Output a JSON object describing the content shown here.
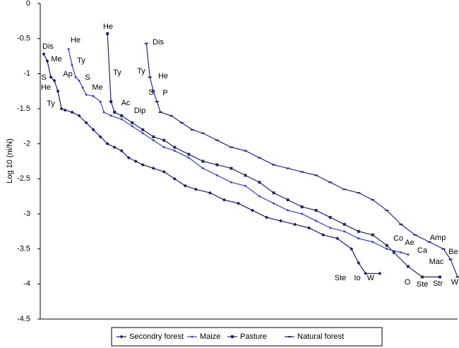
{
  "chart_data": {
    "type": "line",
    "y_label": "Log 10 (ni/N)",
    "ylim": [
      -4.5,
      0
    ],
    "yticks": [
      0,
      -0.5,
      -1,
      -1.5,
      -2,
      -2.5,
      -3,
      -3.5,
      -4,
      -4.5
    ],
    "xlim": [
      0,
      118
    ],
    "series": [
      {
        "name": "Secondry forest",
        "color": "#1c1c5c",
        "marker": "diamond",
        "x": [
          1,
          2,
          3,
          4,
          5,
          6,
          7,
          9,
          11,
          13,
          15,
          17,
          19,
          21,
          23,
          25,
          27,
          29,
          32,
          35,
          38,
          41,
          44,
          48,
          52,
          56,
          60,
          64,
          68,
          72,
          76,
          80,
          84,
          88,
          90,
          92,
          96
        ],
        "values": [
          -0.72,
          -0.82,
          -1.05,
          -1.1,
          -1.25,
          -1.5,
          -1.52,
          -1.55,
          -1.6,
          -1.7,
          -1.8,
          -1.9,
          -2.0,
          -2.05,
          -2.1,
          -2.2,
          -2.25,
          -2.3,
          -2.35,
          -2.4,
          -2.5,
          -2.6,
          -2.65,
          -2.7,
          -2.8,
          -2.85,
          -2.95,
          -3.05,
          -3.1,
          -3.15,
          -3.2,
          -3.3,
          -3.35,
          -3.5,
          -3.7,
          -3.85,
          -3.85
        ]
      },
      {
        "name": "Maize",
        "color": "#4040b8",
        "marker": "dot",
        "x": [
          8,
          9,
          10,
          11,
          12,
          13,
          15,
          17,
          18,
          20,
          23,
          26,
          29,
          32,
          35,
          38,
          42,
          46,
          50,
          54,
          58,
          62,
          66,
          70,
          74,
          78,
          82,
          86,
          90,
          94,
          98,
          102,
          104
        ],
        "values": [
          -0.65,
          -0.88,
          -1.05,
          -1.1,
          -1.2,
          -1.3,
          -1.32,
          -1.4,
          -1.55,
          -1.6,
          -1.65,
          -1.75,
          -1.85,
          -1.95,
          -2.05,
          -2.1,
          -2.2,
          -2.35,
          -2.45,
          -2.55,
          -2.6,
          -2.75,
          -2.85,
          -2.95,
          -3.0,
          -3.1,
          -3.2,
          -3.25,
          -3.35,
          -3.4,
          -3.5,
          -3.55,
          -3.58
        ]
      },
      {
        "name": "Pasture",
        "color": "#26265e",
        "marker": "square",
        "x": [
          19,
          20,
          21,
          23,
          26,
          29,
          32,
          35,
          38,
          42,
          46,
          50,
          54,
          58,
          62,
          66,
          70,
          74,
          78,
          82,
          86,
          90,
          94,
          98,
          100,
          104,
          108,
          113
        ],
        "values": [
          -0.43,
          -1.4,
          -1.55,
          -1.6,
          -1.7,
          -1.8,
          -1.9,
          -1.95,
          -2.05,
          -2.15,
          -2.25,
          -2.3,
          -2.35,
          -2.45,
          -2.55,
          -2.7,
          -2.8,
          -2.9,
          -2.95,
          -3.05,
          -3.15,
          -3.25,
          -3.3,
          -3.45,
          -3.55,
          -3.75,
          -3.9,
          -3.9
        ]
      },
      {
        "name": "Natural forest",
        "color": "#2a2a7a",
        "marker": "dash",
        "x": [
          30,
          31,
          32,
          33,
          34,
          37,
          40,
          43,
          46,
          50,
          54,
          58,
          62,
          66,
          70,
          74,
          78,
          82,
          86,
          90,
          94,
          98,
          102,
          106,
          110,
          114,
          116,
          118
        ],
        "values": [
          -0.57,
          -1.05,
          -1.25,
          -1.4,
          -1.55,
          -1.6,
          -1.7,
          -1.8,
          -1.85,
          -1.95,
          -2.05,
          -2.1,
          -2.2,
          -2.3,
          -2.35,
          -2.4,
          -2.45,
          -2.55,
          -2.65,
          -2.7,
          -2.8,
          -2.95,
          -3.15,
          -3.3,
          -3.4,
          -3.5,
          -3.65,
          -3.9
        ]
      }
    ],
    "annotations": [
      "Dis",
      "Me",
      "S",
      "He",
      "Ty",
      "He",
      "Ty",
      "Ap",
      "S",
      "Me",
      "He",
      "Ty",
      "Ac",
      "Dip",
      "Dis",
      "Ty",
      "He",
      "S",
      "P",
      "Co",
      "Ae",
      "Ca",
      "Amp",
      "Be",
      "Mac",
      "Ste",
      "Io",
      "W",
      "O",
      "Ste",
      "Str",
      "W"
    ]
  }
}
